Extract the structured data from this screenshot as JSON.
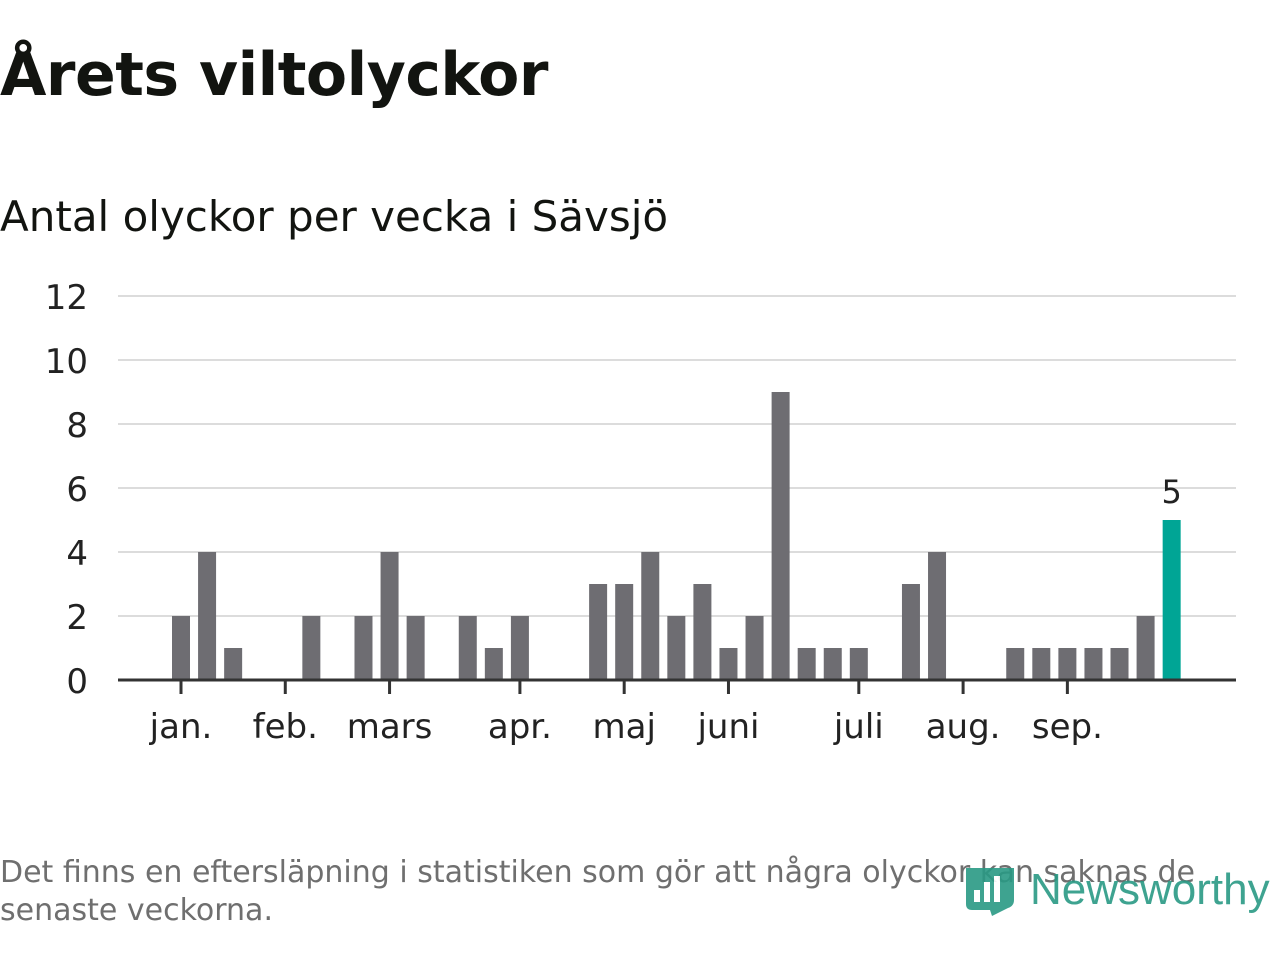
{
  "title": "Årets viltolyckor",
  "subtitle": "Antal olyckor per vecka i Sävsjö",
  "footnote": "Det finns en eftersläpning i statistiken som gör att några olyckor kan saknas de senaste veckorna.",
  "brand": {
    "name": "Newsworthy",
    "color": "#2a9a85",
    "icon": "newsworthy-logo-icon"
  },
  "colors": {
    "bar": "#6e6d72",
    "highlight": "#00a595",
    "grid": "#dcdcdc",
    "axis": "#333333",
    "text": "#222222"
  },
  "chart_data": {
    "type": "bar",
    "title": "Antal olyckor per vecka i Sävsjö",
    "xlabel": "",
    "ylabel": "",
    "ylim": [
      0,
      12
    ],
    "yticks": [
      0,
      2,
      4,
      6,
      8,
      10,
      12
    ],
    "grid": true,
    "weeks": [
      1,
      2,
      3,
      4,
      5,
      6,
      7,
      8,
      9,
      10,
      11,
      12,
      13,
      14,
      15,
      16,
      17,
      18,
      19,
      20,
      21,
      22,
      23,
      24,
      25,
      26,
      27,
      28,
      29,
      30,
      31,
      32,
      33,
      34,
      35,
      36,
      37,
      38,
      39,
      40,
      41,
      42,
      43
    ],
    "values": [
      0,
      0,
      2,
      4,
      1,
      0,
      0,
      2,
      0,
      2,
      4,
      2,
      0,
      2,
      1,
      2,
      0,
      0,
      3,
      3,
      4,
      2,
      3,
      1,
      2,
      9,
      1,
      1,
      1,
      0,
      3,
      4,
      0,
      0,
      1,
      1,
      1,
      1,
      1,
      2,
      5,
      0,
      0
    ],
    "highlight_index": 40,
    "highlight_label": "5",
    "month_ticks": [
      {
        "label": "jan.",
        "week": 3.0
      },
      {
        "label": "feb.",
        "week": 7.0
      },
      {
        "label": "mars",
        "week": 11.0
      },
      {
        "label": "apr.",
        "week": 16.0
      },
      {
        "label": "maj",
        "week": 20.0
      },
      {
        "label": "juni",
        "week": 24.0
      },
      {
        "label": "juli",
        "week": 29.0
      },
      {
        "label": "aug.",
        "week": 33.0
      },
      {
        "label": "sep.",
        "week": 37.0
      }
    ]
  }
}
